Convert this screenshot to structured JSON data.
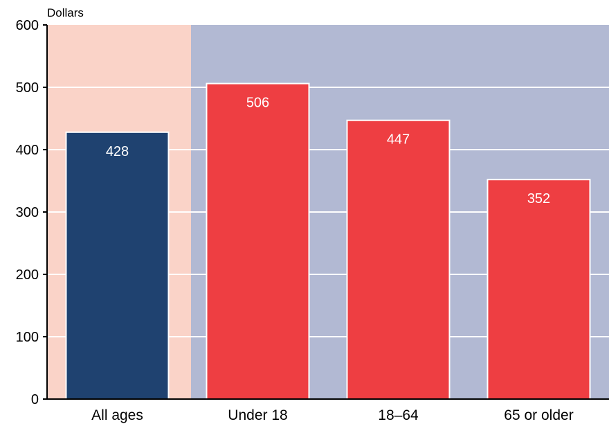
{
  "chart_data": {
    "type": "bar",
    "ylabel": "Dollars",
    "ylim": [
      0,
      600
    ],
    "yticks": [
      0,
      100,
      200,
      300,
      400,
      500,
      600
    ],
    "categories": [
      "All ages",
      "Under 18",
      "18–64",
      "65 or older"
    ],
    "values": [
      428,
      506,
      447,
      352
    ],
    "value_labels": [
      "428",
      "506",
      "447",
      "352"
    ],
    "grid": true,
    "colors": {
      "highlight_bar": "#1f4270",
      "bar": "#ee3e42",
      "highlight_background": "#fad3c8",
      "background": "#b2b9d3",
      "gridline": "#ffffff",
      "bar_outline": "#ffffff"
    }
  }
}
